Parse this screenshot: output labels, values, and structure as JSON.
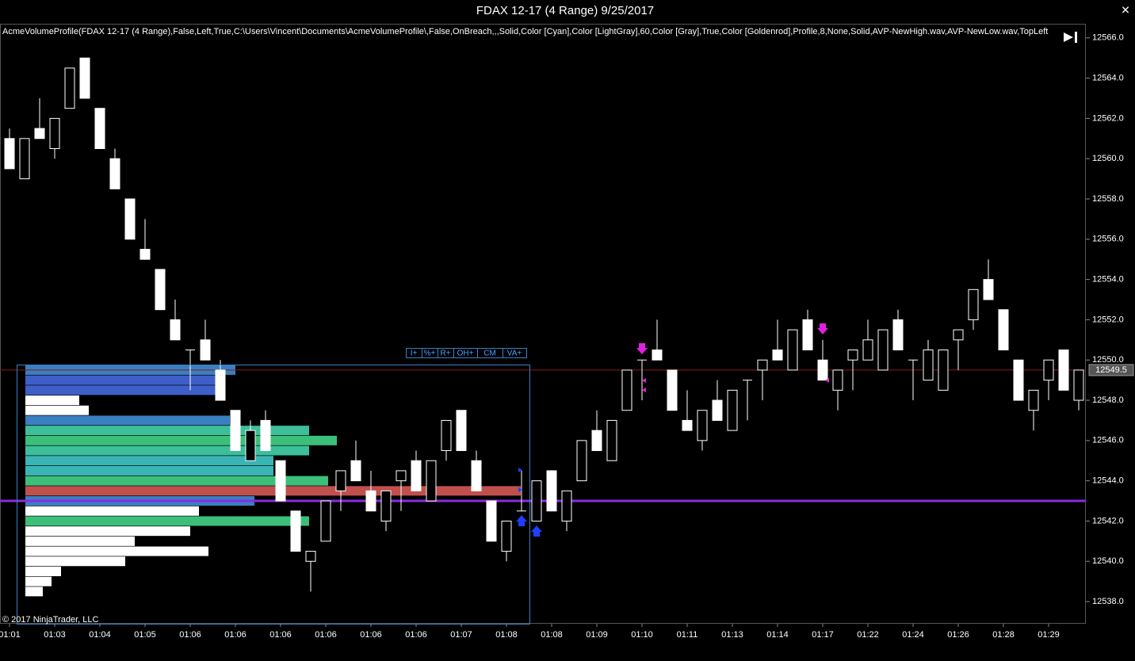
{
  "chart_data": {
    "type": "candlestick",
    "title": "FDAX 12-17 (4 Range)  9/25/2017",
    "indicator_label": "AcmeVolumeProfile(FDAX 12-17 (4 Range),False,Left,True,C:\\Users\\Vincent\\Documents\\AcmeVolumeProfile\\,False,OnBreach,,,Solid,Color [Cyan],Color [LightGray],60,Color [Gray],True,Color [Goldenrod],Profile,8,None,Solid,AVP-NewHigh.wav,AVP-NewLow.wav,TopLeft",
    "copyright": "© 2017 NinjaTrader, LLC",
    "buttons": [
      "I+",
      "%+",
      "R+",
      "OH+",
      "CM",
      "VA+"
    ],
    "categories": [
      "01:01",
      null,
      null,
      "01:03",
      null,
      null,
      "01:04",
      null,
      null,
      "01:05",
      null,
      null,
      "01:06",
      null,
      null,
      "01:06",
      null,
      null,
      "01:06",
      null,
      null,
      "01:06",
      null,
      null,
      "01:06",
      null,
      null,
      "01:06",
      null,
      null,
      "01:07",
      null,
      null,
      "01:08",
      null,
      null,
      "01:08",
      null,
      null,
      "01:09",
      null,
      null,
      "01:10",
      null,
      null,
      "01:11",
      null,
      null,
      "01:13",
      null,
      null,
      "01:14",
      null,
      null,
      "01:17",
      null,
      null,
      "01:22",
      null,
      null,
      "01:24",
      null,
      null,
      "01:26",
      null,
      null,
      "01:28",
      null,
      null,
      "01:29",
      null,
      null
    ],
    "open": [
      12561.0,
      12559.0,
      12561.5,
      12560.5,
      12562.5,
      12565.0,
      12562.5,
      12560.0,
      12558.0,
      12555.5,
      12554.5,
      12552.0,
      12550.5,
      12551.0,
      12549.5,
      12547.5,
      12545.0,
      12547.0,
      12545.0,
      12542.5,
      12540.0,
      12541.0,
      12543.5,
      12545.0,
      12543.5,
      12542.0,
      12544.0,
      12545.0,
      12543.0,
      12545.5,
      12547.5,
      12545.0,
      12543.0,
      12540.5,
      12542.5,
      12542.0,
      12544.5,
      12542.0,
      12544.0,
      12546.5,
      12545.0,
      12547.5,
      12550.0,
      12550.5,
      12549.5,
      12547.0,
      12546.0,
      12548.0,
      12546.5,
      12549.0,
      12549.5,
      12550.5,
      12549.5,
      12552.0,
      12550.0,
      12548.5,
      12550.0,
      12550.0,
      12549.5,
      12552.0,
      12550.0,
      12549.0,
      12548.5,
      12551.0,
      12552.0,
      12554.0,
      12552.5,
      12550.0,
      12547.5,
      12549.0,
      12550.5,
      12548.0
    ],
    "high": [
      12561.5,
      12561.0,
      12563.0,
      12562.0,
      12564.5,
      12565.0,
      12562.5,
      12560.5,
      12558.0,
      12557.0,
      12554.5,
      12553.0,
      12550.5,
      12552.0,
      12550.0,
      12547.5,
      12547.0,
      12547.5,
      12545.0,
      12542.5,
      12540.5,
      12543.0,
      12544.5,
      12546.0,
      12544.5,
      12543.5,
      12544.5,
      12545.5,
      12545.0,
      12547.0,
      12547.5,
      12545.5,
      12543.0,
      12542.0,
      12544.5,
      12544.0,
      12544.5,
      12543.5,
      12546.0,
      12547.5,
      12547.0,
      12549.5,
      12550.0,
      12552.0,
      12549.5,
      12548.5,
      12547.5,
      12549.0,
      12548.5,
      12549.0,
      12550.0,
      12552.0,
      12551.5,
      12552.5,
      12551.0,
      12549.5,
      12550.5,
      12552.0,
      12551.5,
      12552.5,
      12550.0,
      12551.0,
      12550.5,
      12551.5,
      12553.5,
      12555.0,
      12552.5,
      12550.0,
      12548.5,
      12550.0,
      12550.5,
      12549.5
    ],
    "low": [
      12559.5,
      12559.0,
      12561.0,
      12560.0,
      12562.5,
      12563.0,
      12560.5,
      12558.5,
      12556.0,
      12555.0,
      12552.5,
      12551.0,
      12548.5,
      12550.0,
      12548.0,
      12545.5,
      12545.0,
      12545.5,
      12543.0,
      12540.5,
      12538.5,
      12541.0,
      12542.5,
      12544.0,
      12542.5,
      12541.5,
      12542.5,
      12543.5,
      12543.0,
      12545.0,
      12545.5,
      12543.5,
      12541.0,
      12540.0,
      12542.5,
      12542.0,
      12542.5,
      12541.5,
      12544.0,
      12545.5,
      12545.0,
      12547.5,
      12548.0,
      12550.0,
      12547.5,
      12546.5,
      12545.5,
      12547.0,
      12546.5,
      12547.0,
      12548.0,
      12550.0,
      12549.5,
      12550.5,
      12549.0,
      12547.5,
      12548.5,
      12550.0,
      12549.5,
      12550.5,
      12548.0,
      12549.0,
      12548.5,
      12549.5,
      12551.5,
      12553.0,
      12550.5,
      12548.0,
      12546.5,
      12548.0,
      12548.5,
      12547.5
    ],
    "close": [
      12559.5,
      12561.0,
      12561.0,
      12562.0,
      12564.5,
      12563.0,
      12560.5,
      12558.5,
      12556.0,
      12555.0,
      12552.5,
      12551.0,
      12550.5,
      12550.0,
      12548.0,
      12545.5,
      12546.5,
      12545.5,
      12543.0,
      12540.5,
      12540.5,
      12543.0,
      12544.5,
      12544.0,
      12542.5,
      12543.5,
      12544.5,
      12543.5,
      12545.0,
      12547.0,
      12545.5,
      12543.5,
      12541.0,
      12542.0,
      12542.5,
      12544.0,
      12542.5,
      12543.5,
      12546.0,
      12545.5,
      12547.0,
      12549.5,
      12550.0,
      12550.0,
      12547.5,
      12546.5,
      12547.5,
      12547.0,
      12548.5,
      12549.0,
      12550.0,
      12550.0,
      12551.5,
      12550.5,
      12549.0,
      12549.5,
      12550.5,
      12551.0,
      12551.5,
      12550.5,
      12550.0,
      12550.5,
      12550.5,
      12551.5,
      12553.5,
      12553.0,
      12550.5,
      12548.0,
      12548.5,
      12550.0,
      12548.5,
      12549.5
    ],
    "color": "#ffffff",
    "ylim": [
      12536.9,
      12566.7
    ],
    "yticks": [
      {
        "value": 12538.0,
        "label": "12538.0"
      },
      {
        "value": 12540.0,
        "label": "12540.0"
      },
      {
        "value": 12542.0,
        "label": "12542.0"
      },
      {
        "value": 12544.0,
        "label": "12544.0"
      },
      {
        "value": 12546.0,
        "label": "12546.0"
      },
      {
        "value": 12548.0,
        "label": "12548.0"
      },
      {
        "value": 12550.0,
        "label": "12550.0"
      },
      {
        "value": 12552.0,
        "label": "12552.0"
      },
      {
        "value": 12554.0,
        "label": "12554.0"
      },
      {
        "value": 12556.0,
        "label": "12556.0"
      },
      {
        "value": 12558.0,
        "label": "12558.0"
      },
      {
        "value": 12560.0,
        "label": "12560.0"
      },
      {
        "value": 12562.0,
        "label": "12562.0"
      },
      {
        "value": 12564.0,
        "label": "12564.0"
      },
      {
        "value": 12566.0,
        "label": "12566.0"
      }
    ],
    "last_price": 12549.5,
    "last_price_color": "#8b1a1a",
    "price_line": {
      "value": 12543.0,
      "color": "#8a2be2"
    },
    "profile": {
      "prices": [
        12549.5,
        12549.0,
        12548.5,
        12548.0,
        12547.5,
        12547.0,
        12546.5,
        12546.0,
        12545.5,
        12545.0,
        12544.5,
        12544.0,
        12543.5,
        12543.0,
        12542.5,
        12542.0,
        12541.5,
        12541.0,
        12540.5,
        12540.0,
        12539.5,
        12539.0,
        12538.5
      ],
      "volumes": [
        265,
        246,
        246,
        68,
        80,
        258,
        358,
        393,
        358,
        313,
        313,
        382,
        625,
        289,
        219,
        358,
        208,
        138,
        231,
        126,
        45,
        33,
        22
      ],
      "colors": [
        "#3a7fc1",
        "#3f5fc8",
        "#3f5fc8",
        "#ffffff",
        "#ffffff",
        "#3a7fc1",
        "#3cbf9a",
        "#3cbf7a",
        "#3cbf9a",
        "#3ab5b5",
        "#3ab5b5",
        "#3cbf7a",
        "#c0504d",
        "#3a7fc1",
        "#ffffff",
        "#3cbf7a",
        "#ffffff",
        "#ffffff",
        "#ffffff",
        "#ffffff",
        "#ffffff",
        "#ffffff",
        "#ffffff"
      ]
    }
  }
}
